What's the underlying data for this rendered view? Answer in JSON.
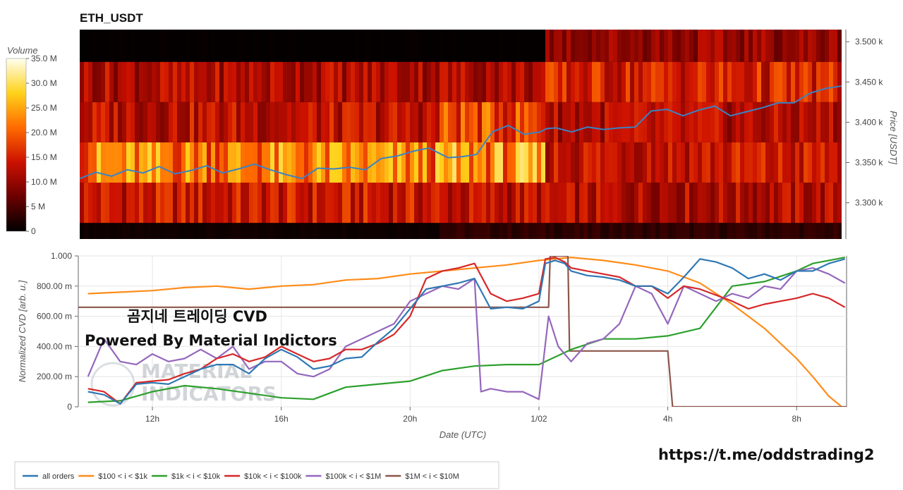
{
  "chart_data": [
    {
      "type": "heatmap",
      "title": "ETH_USDT",
      "colorbar": {
        "title": "Volume",
        "ticks": [
          "0",
          "5 M",
          "10.0 M",
          "15.0 M",
          "20.0 M",
          "25.0 M",
          "30.0 M",
          "35.0 M"
        ],
        "max": 35
      },
      "y_axis": {
        "label": "Price [USDT]",
        "ticks": [
          "3.300 k",
          "3.350 k",
          "3.400 k",
          "3.450 k",
          "3.500 k"
        ],
        "ylim": [
          3255,
          3515
        ]
      },
      "price_bands": [
        3255,
        3275,
        3325,
        3375,
        3425,
        3475,
        3515
      ],
      "band_volumes": [
        [
          1,
          3,
          3,
          0.5
        ],
        [
          14,
          13,
          12,
          0.4
        ],
        [
          22,
          23,
          14,
          10
        ],
        [
          13,
          18,
          12,
          3
        ],
        [
          12,
          12,
          15,
          30
        ],
        [
          0.3,
          0.3,
          10,
          13
        ]
      ],
      "segments_hours": [
        0,
        11.3,
        14.6,
        24
      ],
      "price_line": {
        "color": "#3b82c4",
        "x": [
          0,
          0.5,
          1,
          1.5,
          2,
          2.5,
          3,
          3.5,
          4,
          4.5,
          5,
          5.5,
          6,
          6.5,
          7,
          7.5,
          8,
          8.5,
          9,
          9.5,
          10,
          10.5,
          11,
          11.3,
          11.6,
          12,
          12.5,
          13,
          13.5,
          14,
          14.5,
          14.7,
          15,
          15.5,
          16,
          16.5,
          17,
          17.5,
          18,
          18.5,
          19,
          19.5,
          20,
          20.5,
          21,
          21.5,
          22,
          22.5,
          23,
          23.5,
          24
        ],
        "y": [
          3330,
          3338,
          3333,
          3341,
          3337,
          3345,
          3336,
          3340,
          3346,
          3337,
          3342,
          3348,
          3341,
          3335,
          3330,
          3343,
          3342,
          3344,
          3341,
          3355,
          3358,
          3364,
          3368,
          3362,
          3356,
          3357,
          3360,
          3388,
          3396,
          3385,
          3388,
          3392,
          3393,
          3388,
          3394,
          3391,
          3393,
          3394,
          3414,
          3416,
          3408,
          3415,
          3420,
          3408,
          3413,
          3418,
          3424,
          3424,
          3436,
          3442,
          3445
        ]
      }
    },
    {
      "type": "line",
      "xlabel": "Date (UTC)",
      "ylabel": "Normalized CVD [arb. u.]",
      "x_ticks": [
        "12h",
        "16h",
        "20h",
        "1/02",
        "4h",
        "8h"
      ],
      "x_tick_hours": [
        2,
        6,
        10,
        14,
        18,
        22
      ],
      "xlim": [
        -0.3,
        23.55
      ],
      "y_ticks": [
        "0",
        "200.00 m",
        "400.00 m",
        "600.00 m",
        "800.00 m",
        "1.000"
      ],
      "ylim": [
        0,
        1
      ],
      "series": [
        {
          "name": "all orders",
          "color": "#2f78b4",
          "x": [
            0,
            0.5,
            1,
            1.5,
            2,
            2.5,
            3,
            3.5,
            4,
            4.5,
            5,
            5.5,
            6,
            6.5,
            7,
            7.5,
            8,
            8.5,
            9,
            9.5,
            10,
            10.5,
            11,
            11.5,
            12,
            12.5,
            13,
            13.5,
            14,
            14.2,
            14.5,
            14.8,
            15,
            15.5,
            16,
            16.5,
            17,
            17.5,
            18,
            18.5,
            19,
            19.5,
            20,
            20.5,
            21,
            21.5,
            22,
            22.5,
            23,
            23.5
          ],
          "y": [
            0.1,
            0.08,
            0.02,
            0.15,
            0.16,
            0.15,
            0.2,
            0.25,
            0.28,
            0.28,
            0.22,
            0.32,
            0.38,
            0.33,
            0.25,
            0.27,
            0.32,
            0.33,
            0.43,
            0.52,
            0.65,
            0.78,
            0.8,
            0.82,
            0.85,
            0.65,
            0.66,
            0.65,
            0.7,
            0.95,
            0.97,
            0.95,
            0.9,
            0.87,
            0.86,
            0.84,
            0.8,
            0.8,
            0.75,
            0.86,
            0.98,
            0.96,
            0.92,
            0.85,
            0.88,
            0.84,
            0.9,
            0.9,
            0.95,
            0.98
          ]
        },
        {
          "name": "$100 < i < $1k",
          "color": "#ff8c1a",
          "x": [
            0,
            1,
            2,
            3,
            4,
            5,
            6,
            7,
            8,
            9,
            10,
            11,
            12,
            13,
            14,
            15,
            16,
            17,
            18,
            19,
            20,
            21,
            22,
            22.5,
            23,
            23.4
          ],
          "y": [
            0.75,
            0.76,
            0.77,
            0.79,
            0.8,
            0.78,
            0.8,
            0.81,
            0.84,
            0.85,
            0.88,
            0.9,
            0.92,
            0.94,
            0.97,
            0.99,
            0.97,
            0.94,
            0.9,
            0.82,
            0.68,
            0.52,
            0.32,
            0.2,
            0.07,
            0.0
          ]
        },
        {
          "name": "$1k < i < $10k",
          "color": "#2ca02c",
          "x": [
            0,
            1,
            2,
            3,
            4,
            5,
            6,
            7,
            8,
            9,
            10,
            11,
            12,
            13,
            14,
            15,
            16,
            17,
            18,
            19,
            20,
            21,
            22,
            22.5,
            23,
            23.5
          ],
          "y": [
            0.03,
            0.04,
            0.1,
            0.14,
            0.12,
            0.09,
            0.06,
            0.05,
            0.13,
            0.15,
            0.17,
            0.24,
            0.27,
            0.28,
            0.28,
            0.38,
            0.45,
            0.45,
            0.47,
            0.52,
            0.8,
            0.83,
            0.9,
            0.95,
            0.97,
            0.99
          ]
        },
        {
          "name": "$10k < i < $100k",
          "color": "#d62728",
          "x": [
            0,
            0.5,
            1,
            1.5,
            2,
            2.5,
            3,
            3.5,
            4,
            4.5,
            5,
            5.5,
            6,
            6.5,
            7,
            7.5,
            8,
            8.5,
            9,
            9.5,
            10,
            10.5,
            11,
            11.5,
            12,
            12.5,
            13,
            13.5,
            14,
            14.2,
            14.5,
            14.8,
            15,
            15.5,
            16,
            16.5,
            17,
            17.5,
            18,
            18.5,
            19,
            19.5,
            20,
            20.5,
            21,
            21.5,
            22,
            22.5,
            23,
            23.5
          ],
          "y": [
            0.12,
            0.1,
            0.02,
            0.16,
            0.17,
            0.18,
            0.22,
            0.25,
            0.32,
            0.35,
            0.3,
            0.33,
            0.4,
            0.35,
            0.3,
            0.32,
            0.38,
            0.38,
            0.42,
            0.48,
            0.6,
            0.85,
            0.9,
            0.92,
            0.95,
            0.75,
            0.7,
            0.72,
            0.75,
            0.98,
            0.99,
            0.96,
            0.92,
            0.9,
            0.88,
            0.86,
            0.8,
            0.8,
            0.72,
            0.8,
            0.78,
            0.74,
            0.7,
            0.65,
            0.68,
            0.7,
            0.72,
            0.75,
            0.72,
            0.66
          ]
        },
        {
          "name": "$100k < i < $1M",
          "color": "#9467bd",
          "x": [
            0,
            0.5,
            1,
            1.5,
            2,
            2.5,
            3,
            3.5,
            4,
            4.5,
            5,
            5.5,
            6,
            6.5,
            7,
            7.5,
            8,
            8.5,
            9,
            9.5,
            10,
            10.5,
            11,
            11.5,
            12,
            12.2,
            12.5,
            13,
            13.5,
            14,
            14.3,
            14.6,
            15,
            15.5,
            16,
            16.5,
            17,
            17.5,
            18,
            18.5,
            19,
            19.5,
            20,
            20.5,
            21,
            21.5,
            22,
            22.5,
            23,
            23.5
          ],
          "y": [
            0.2,
            0.45,
            0.3,
            0.28,
            0.35,
            0.3,
            0.32,
            0.38,
            0.32,
            0.4,
            0.25,
            0.3,
            0.3,
            0.22,
            0.2,
            0.25,
            0.4,
            0.45,
            0.5,
            0.55,
            0.7,
            0.75,
            0.8,
            0.78,
            0.85,
            0.1,
            0.12,
            0.1,
            0.1,
            0.05,
            0.6,
            0.4,
            0.3,
            0.42,
            0.45,
            0.55,
            0.8,
            0.75,
            0.55,
            0.8,
            0.75,
            0.7,
            0.75,
            0.72,
            0.8,
            0.78,
            0.9,
            0.92,
            0.88,
            0.82
          ]
        },
        {
          "name": "$1M < i < $10M",
          "color": "#8c564b",
          "x": [
            -0.3,
            14.3,
            14.35,
            14.9,
            14.95,
            18.0,
            18.15,
            23.55
          ],
          "y": [
            0.66,
            0.66,
            1.0,
            1.0,
            0.37,
            0.37,
            0.0,
            0.0
          ]
        }
      ]
    }
  ],
  "overlay": {
    "line1": "곰지네 트레이딩 CVD",
    "line2": "Powered By Material Indictors",
    "watermark_top": "MATERIAL",
    "watermark_bottom": "INDICATORS",
    "url": "https://t.me/oddstrading2"
  }
}
